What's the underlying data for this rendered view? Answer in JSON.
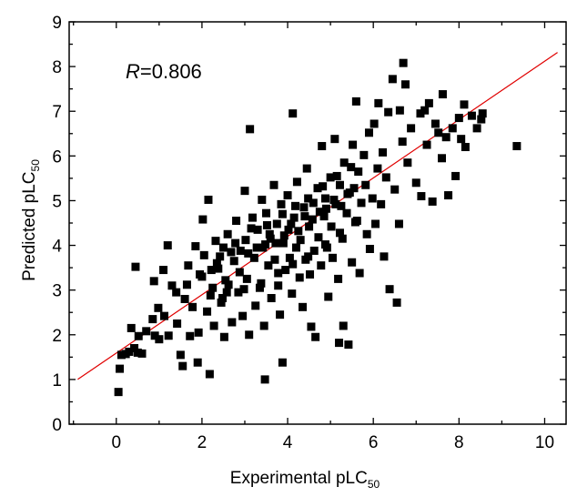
{
  "chart_data": {
    "type": "scatter",
    "xlabel": "Experimental pLC",
    "xlabel_sub": "50",
    "ylabel": "Predicted pLC",
    "ylabel_sub": "50",
    "xlim": [
      -1.1,
      10.5
    ],
    "ylim": [
      0,
      9
    ],
    "x_ticks": [
      0,
      2,
      4,
      6,
      8,
      10
    ],
    "x_tick_labels": [
      "0",
      "2",
      "4",
      "6",
      "8",
      "10"
    ],
    "y_ticks": [
      0,
      1,
      2,
      3,
      4,
      5,
      6,
      7,
      8,
      9
    ],
    "y_tick_labels": [
      "0",
      "1",
      "2",
      "3",
      "4",
      "5",
      "6",
      "7",
      "8",
      "9"
    ],
    "annotation": {
      "italic": "R",
      "text": "=0.806"
    },
    "grid": false,
    "marker_color": "#000000",
    "fit_line": {
      "color": "#e00000",
      "slope": 0.653,
      "intercept": 1.59,
      "x_start": -0.9,
      "x_end": 10.3
    },
    "series": [
      {
        "points": [
          [
            0.05,
            0.72
          ],
          [
            0.08,
            1.24
          ],
          [
            0.12,
            1.55
          ],
          [
            0.3,
            1.62
          ],
          [
            0.22,
            1.57
          ],
          [
            0.42,
            1.7
          ],
          [
            0.5,
            1.6
          ],
          [
            0.6,
            1.58
          ],
          [
            0.35,
            2.15
          ],
          [
            0.52,
            1.97
          ],
          [
            0.45,
            3.52
          ],
          [
            0.7,
            2.08
          ],
          [
            0.85,
            2.35
          ],
          [
            0.9,
            1.98
          ],
          [
            0.98,
            2.6
          ],
          [
            0.88,
            3.2
          ],
          [
            1.0,
            1.9
          ],
          [
            1.12,
            2.42
          ],
          [
            1.22,
            1.98
          ],
          [
            1.1,
            3.45
          ],
          [
            1.2,
            4.0
          ],
          [
            1.3,
            3.1
          ],
          [
            1.42,
            2.25
          ],
          [
            1.5,
            1.55
          ],
          [
            1.55,
            1.3
          ],
          [
            1.6,
            2.8
          ],
          [
            1.72,
            1.97
          ],
          [
            1.68,
            3.55
          ],
          [
            1.78,
            2.62
          ],
          [
            1.85,
            3.98
          ],
          [
            1.92,
            2.05
          ],
          [
            1.9,
            1.38
          ],
          [
            2.0,
            3.3
          ],
          [
            2.02,
            4.58
          ],
          [
            2.05,
            3.78
          ],
          [
            2.12,
            2.52
          ],
          [
            2.18,
            1.12
          ],
          [
            2.15,
            5.02
          ],
          [
            2.25,
            3.05
          ],
          [
            2.28,
            2.2
          ],
          [
            2.32,
            4.1
          ],
          [
            2.38,
            3.48
          ],
          [
            2.45,
            2.72
          ],
          [
            2.5,
            3.95
          ],
          [
            2.52,
            1.95
          ],
          [
            2.6,
            4.25
          ],
          [
            2.62,
            3.12
          ],
          [
            2.7,
            2.28
          ],
          [
            2.75,
            3.65
          ],
          [
            2.8,
            4.55
          ],
          [
            2.85,
            2.95
          ],
          [
            2.9,
            3.88
          ],
          [
            2.95,
            2.42
          ],
          [
            3.0,
            5.22
          ],
          [
            3.02,
            4.12
          ],
          [
            3.05,
            3.25
          ],
          [
            3.1,
            2.0
          ],
          [
            3.12,
            6.6
          ],
          [
            3.18,
            4.62
          ],
          [
            3.22,
            3.72
          ],
          [
            3.25,
            2.65
          ],
          [
            3.3,
            4.35
          ],
          [
            3.35,
            3.05
          ],
          [
            3.4,
            5.02
          ],
          [
            3.42,
            3.95
          ],
          [
            3.45,
            2.2
          ],
          [
            3.47,
            1.0
          ],
          [
            3.5,
            4.72
          ],
          [
            3.55,
            3.55
          ],
          [
            3.6,
            4.15
          ],
          [
            3.62,
            2.82
          ],
          [
            3.68,
            5.35
          ],
          [
            3.7,
            3.68
          ],
          [
            3.75,
            4.48
          ],
          [
            3.78,
            3.1
          ],
          [
            3.82,
            2.45
          ],
          [
            3.85,
            4.92
          ],
          [
            3.88,
            1.38
          ],
          [
            3.9,
            4.05
          ],
          [
            3.95,
            3.45
          ],
          [
            4.0,
            5.12
          ],
          [
            4.02,
            4.35
          ],
          [
            4.05,
            3.72
          ],
          [
            4.1,
            2.92
          ],
          [
            4.12,
            6.95
          ],
          [
            4.15,
            4.62
          ],
          [
            4.2,
            3.95
          ],
          [
            4.22,
            5.42
          ],
          [
            4.28,
            3.28
          ],
          [
            4.3,
            4.12
          ],
          [
            4.35,
            2.62
          ],
          [
            4.38,
            4.85
          ],
          [
            4.42,
            3.68
          ],
          [
            4.45,
            5.72
          ],
          [
            4.5,
            4.42
          ],
          [
            4.52,
            3.35
          ],
          [
            4.55,
            2.18
          ],
          [
            4.6,
            4.95
          ],
          [
            4.62,
            3.88
          ],
          [
            4.65,
            1.95
          ],
          [
            4.7,
            5.28
          ],
          [
            4.72,
            4.18
          ],
          [
            4.78,
            3.55
          ],
          [
            4.8,
            6.22
          ],
          [
            4.85,
            4.65
          ],
          [
            4.88,
            5.05
          ],
          [
            4.92,
            3.95
          ],
          [
            4.95,
            2.85
          ],
          [
            5.0,
            5.52
          ],
          [
            5.02,
            4.42
          ],
          [
            5.05,
            3.72
          ],
          [
            5.1,
            6.38
          ],
          [
            5.12,
            4.92
          ],
          [
            5.18,
            3.25
          ],
          [
            5.2,
            1.82
          ],
          [
            5.22,
            5.35
          ],
          [
            5.28,
            4.15
          ],
          [
            5.3,
            2.2
          ],
          [
            5.32,
            5.85
          ],
          [
            5.38,
            4.72
          ],
          [
            5.42,
            1.78
          ],
          [
            5.45,
            5.18
          ],
          [
            5.5,
            3.62
          ],
          [
            5.52,
            6.25
          ],
          [
            5.58,
            4.52
          ],
          [
            5.6,
            7.22
          ],
          [
            5.65,
            5.65
          ],
          [
            5.68,
            3.38
          ],
          [
            5.72,
            4.95
          ],
          [
            5.78,
            6.02
          ],
          [
            5.82,
            5.35
          ],
          [
            5.85,
            4.25
          ],
          [
            5.9,
            6.52
          ],
          [
            5.92,
            3.92
          ],
          [
            5.98,
            5.05
          ],
          [
            6.02,
            6.72
          ],
          [
            6.05,
            4.48
          ],
          [
            6.1,
            5.72
          ],
          [
            6.12,
            7.18
          ],
          [
            6.18,
            4.92
          ],
          [
            6.22,
            6.08
          ],
          [
            6.25,
            3.75
          ],
          [
            6.3,
            5.52
          ],
          [
            6.35,
            6.98
          ],
          [
            6.38,
            3.02
          ],
          [
            6.45,
            7.72
          ],
          [
            6.5,
            5.25
          ],
          [
            6.55,
            2.72
          ],
          [
            6.6,
            4.48
          ],
          [
            6.62,
            7.02
          ],
          [
            6.68,
            6.32
          ],
          [
            6.7,
            8.08
          ],
          [
            6.75,
            7.6
          ],
          [
            6.8,
            5.85
          ],
          [
            6.88,
            6.62
          ],
          [
            7.0,
            5.4
          ],
          [
            7.1,
            6.95
          ],
          [
            7.12,
            5.1
          ],
          [
            7.2,
            7.02
          ],
          [
            7.25,
            6.25
          ],
          [
            7.3,
            7.18
          ],
          [
            7.38,
            4.98
          ],
          [
            7.45,
            6.72
          ],
          [
            7.52,
            6.52
          ],
          [
            7.6,
            5.95
          ],
          [
            7.62,
            7.38
          ],
          [
            7.7,
            6.42
          ],
          [
            7.75,
            5.12
          ],
          [
            7.85,
            6.62
          ],
          [
            7.92,
            5.55
          ],
          [
            8.0,
            6.85
          ],
          [
            8.05,
            6.38
          ],
          [
            8.12,
            7.15
          ],
          [
            8.15,
            6.2
          ],
          [
            8.3,
            6.9
          ],
          [
            8.42,
            6.62
          ],
          [
            8.52,
            6.82
          ],
          [
            8.55,
            6.95
          ],
          [
            9.35,
            6.22
          ],
          [
            2.35,
            3.6
          ],
          [
            2.55,
            3.22
          ],
          [
            2.68,
            3.85
          ],
          [
            2.88,
            3.4
          ],
          [
            3.08,
            3.82
          ],
          [
            3.28,
            3.95
          ],
          [
            3.48,
            4.02
          ],
          [
            3.58,
            4.25
          ],
          [
            3.72,
            4.05
          ],
          [
            3.92,
            4.22
          ],
          [
            4.08,
            4.48
          ],
          [
            4.25,
            4.32
          ],
          [
            4.4,
            4.65
          ],
          [
            4.58,
            4.58
          ],
          [
            4.75,
            4.75
          ],
          [
            4.9,
            4.82
          ],
          [
            5.08,
            5.02
          ],
          [
            5.25,
            4.88
          ],
          [
            5.4,
            5.15
          ],
          [
            5.55,
            5.28
          ],
          [
            2.42,
            3.75
          ],
          [
            2.78,
            4.05
          ],
          [
            3.15,
            4.38
          ],
          [
            3.52,
            4.45
          ],
          [
            3.88,
            4.7
          ],
          [
            4.18,
            4.88
          ],
          [
            4.48,
            5.05
          ],
          [
            4.82,
            5.32
          ],
          [
            5.15,
            5.55
          ],
          [
            5.48,
            5.75
          ],
          [
            2.2,
            2.88
          ],
          [
            2.58,
            2.95
          ],
          [
            2.98,
            3.02
          ],
          [
            3.38,
            3.15
          ],
          [
            3.78,
            3.38
          ],
          [
            4.12,
            3.58
          ],
          [
            4.48,
            3.75
          ],
          [
            4.88,
            4.02
          ],
          [
            5.22,
            4.28
          ],
          [
            5.62,
            4.55
          ],
          [
            1.4,
            2.95
          ],
          [
            1.65,
            3.12
          ],
          [
            1.95,
            3.35
          ],
          [
            2.22,
            3.45
          ],
          [
            2.48,
            2.82
          ]
        ]
      }
    ]
  }
}
